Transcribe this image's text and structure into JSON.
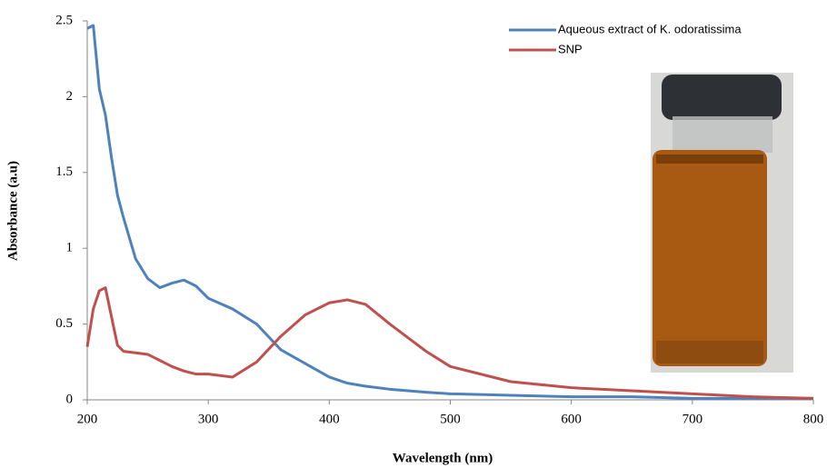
{
  "chart_data": {
    "type": "line",
    "x_label": "Wavelength (nm)",
    "y_label": "Absorbance (a.u)",
    "x": [
      200,
      205,
      210,
      215,
      220,
      225,
      230,
      240,
      250,
      260,
      270,
      280,
      290,
      300,
      320,
      340,
      360,
      380,
      400,
      415,
      430,
      450,
      480,
      500,
      550,
      600,
      650,
      700,
      750,
      800
    ],
    "series": [
      {
        "name": "Aqueous extract of K. odoratissima",
        "color": "#4f81bd",
        "values": [
          2.45,
          2.47,
          2.05,
          1.88,
          1.6,
          1.35,
          1.2,
          0.93,
          0.8,
          0.74,
          0.77,
          0.79,
          0.75,
          0.67,
          0.6,
          0.5,
          0.33,
          0.24,
          0.15,
          0.11,
          0.09,
          0.07,
          0.05,
          0.04,
          0.03,
          0.02,
          0.02,
          0.01,
          0.01,
          0.01
        ]
      },
      {
        "name": "SNP",
        "color": "#c0504d",
        "values": [
          0.35,
          0.6,
          0.72,
          0.74,
          0.55,
          0.36,
          0.32,
          0.31,
          0.3,
          0.26,
          0.22,
          0.19,
          0.17,
          0.17,
          0.15,
          0.25,
          0.42,
          0.56,
          0.64,
          0.66,
          0.63,
          0.5,
          0.32,
          0.22,
          0.12,
          0.08,
          0.06,
          0.04,
          0.02,
          0.01
        ]
      }
    ],
    "xlim": [
      200,
      800
    ],
    "xticks": [
      200,
      300,
      400,
      500,
      600,
      700,
      800
    ],
    "ylim": [
      0,
      2.5
    ],
    "yticks": [
      0,
      0.5,
      1,
      1.5,
      2,
      2.5
    ],
    "grid": false,
    "legend": "top-right"
  }
}
